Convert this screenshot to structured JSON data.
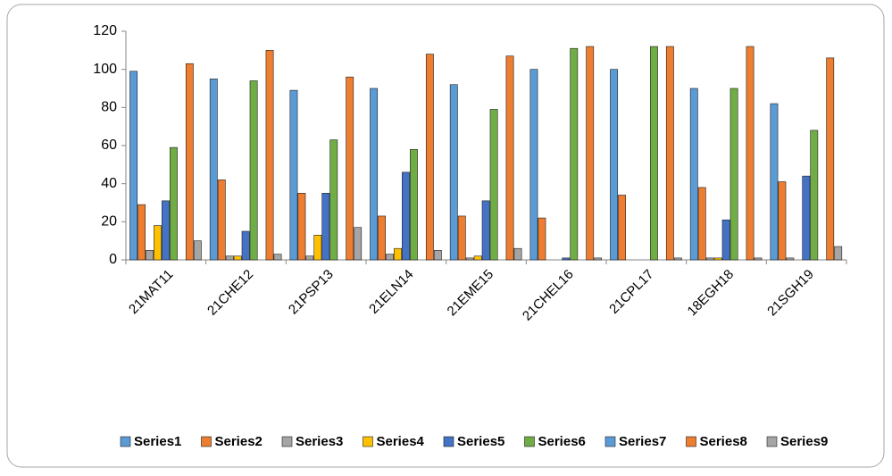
{
  "chart_data": {
    "type": "bar",
    "categories": [
      "21MAT11",
      "21CHE12",
      "21PSP13",
      "21ELN14",
      "21EME15",
      "21CHEL16",
      "21CPL17",
      "18EGH18",
      "21SGH19"
    ],
    "series": [
      {
        "name": "Series1",
        "color": "#5b9bd5",
        "values": [
          99,
          95,
          89,
          90,
          92,
          100,
          100,
          90,
          82
        ]
      },
      {
        "name": "Series2",
        "color": "#ed7d31",
        "values": [
          29,
          42,
          35,
          23,
          23,
          22,
          34,
          38,
          41
        ]
      },
      {
        "name": "Series3",
        "color": "#a5a5a5",
        "values": [
          5,
          2,
          2,
          3,
          1,
          0,
          0,
          1,
          1
        ]
      },
      {
        "name": "Series4",
        "color": "#ffc000",
        "values": [
          18,
          2,
          13,
          6,
          2,
          0,
          0,
          1,
          0
        ]
      },
      {
        "name": "Series5",
        "color": "#4472c4",
        "values": [
          31,
          15,
          35,
          46,
          31,
          1,
          0,
          21,
          44
        ]
      },
      {
        "name": "Series6",
        "color": "#70ad47",
        "values": [
          59,
          94,
          63,
          58,
          79,
          111,
          112,
          90,
          68
        ]
      },
      {
        "name": "Series7",
        "color": "#5b9bd5",
        "values": [
          0,
          0,
          0,
          0,
          0,
          0,
          0,
          0,
          0
        ]
      },
      {
        "name": "Series8",
        "color": "#ed7d31",
        "values": [
          103,
          110,
          96,
          108,
          107,
          112,
          112,
          112,
          106
        ]
      },
      {
        "name": "Series9",
        "color": "#a5a5a5",
        "values": [
          10,
          3,
          17,
          5,
          6,
          1,
          1,
          1,
          7
        ]
      }
    ],
    "ylim": [
      0,
      120
    ],
    "yticks": [
      0,
      20,
      40,
      60,
      80,
      100,
      120
    ],
    "grid": false,
    "legend": "bottom"
  }
}
